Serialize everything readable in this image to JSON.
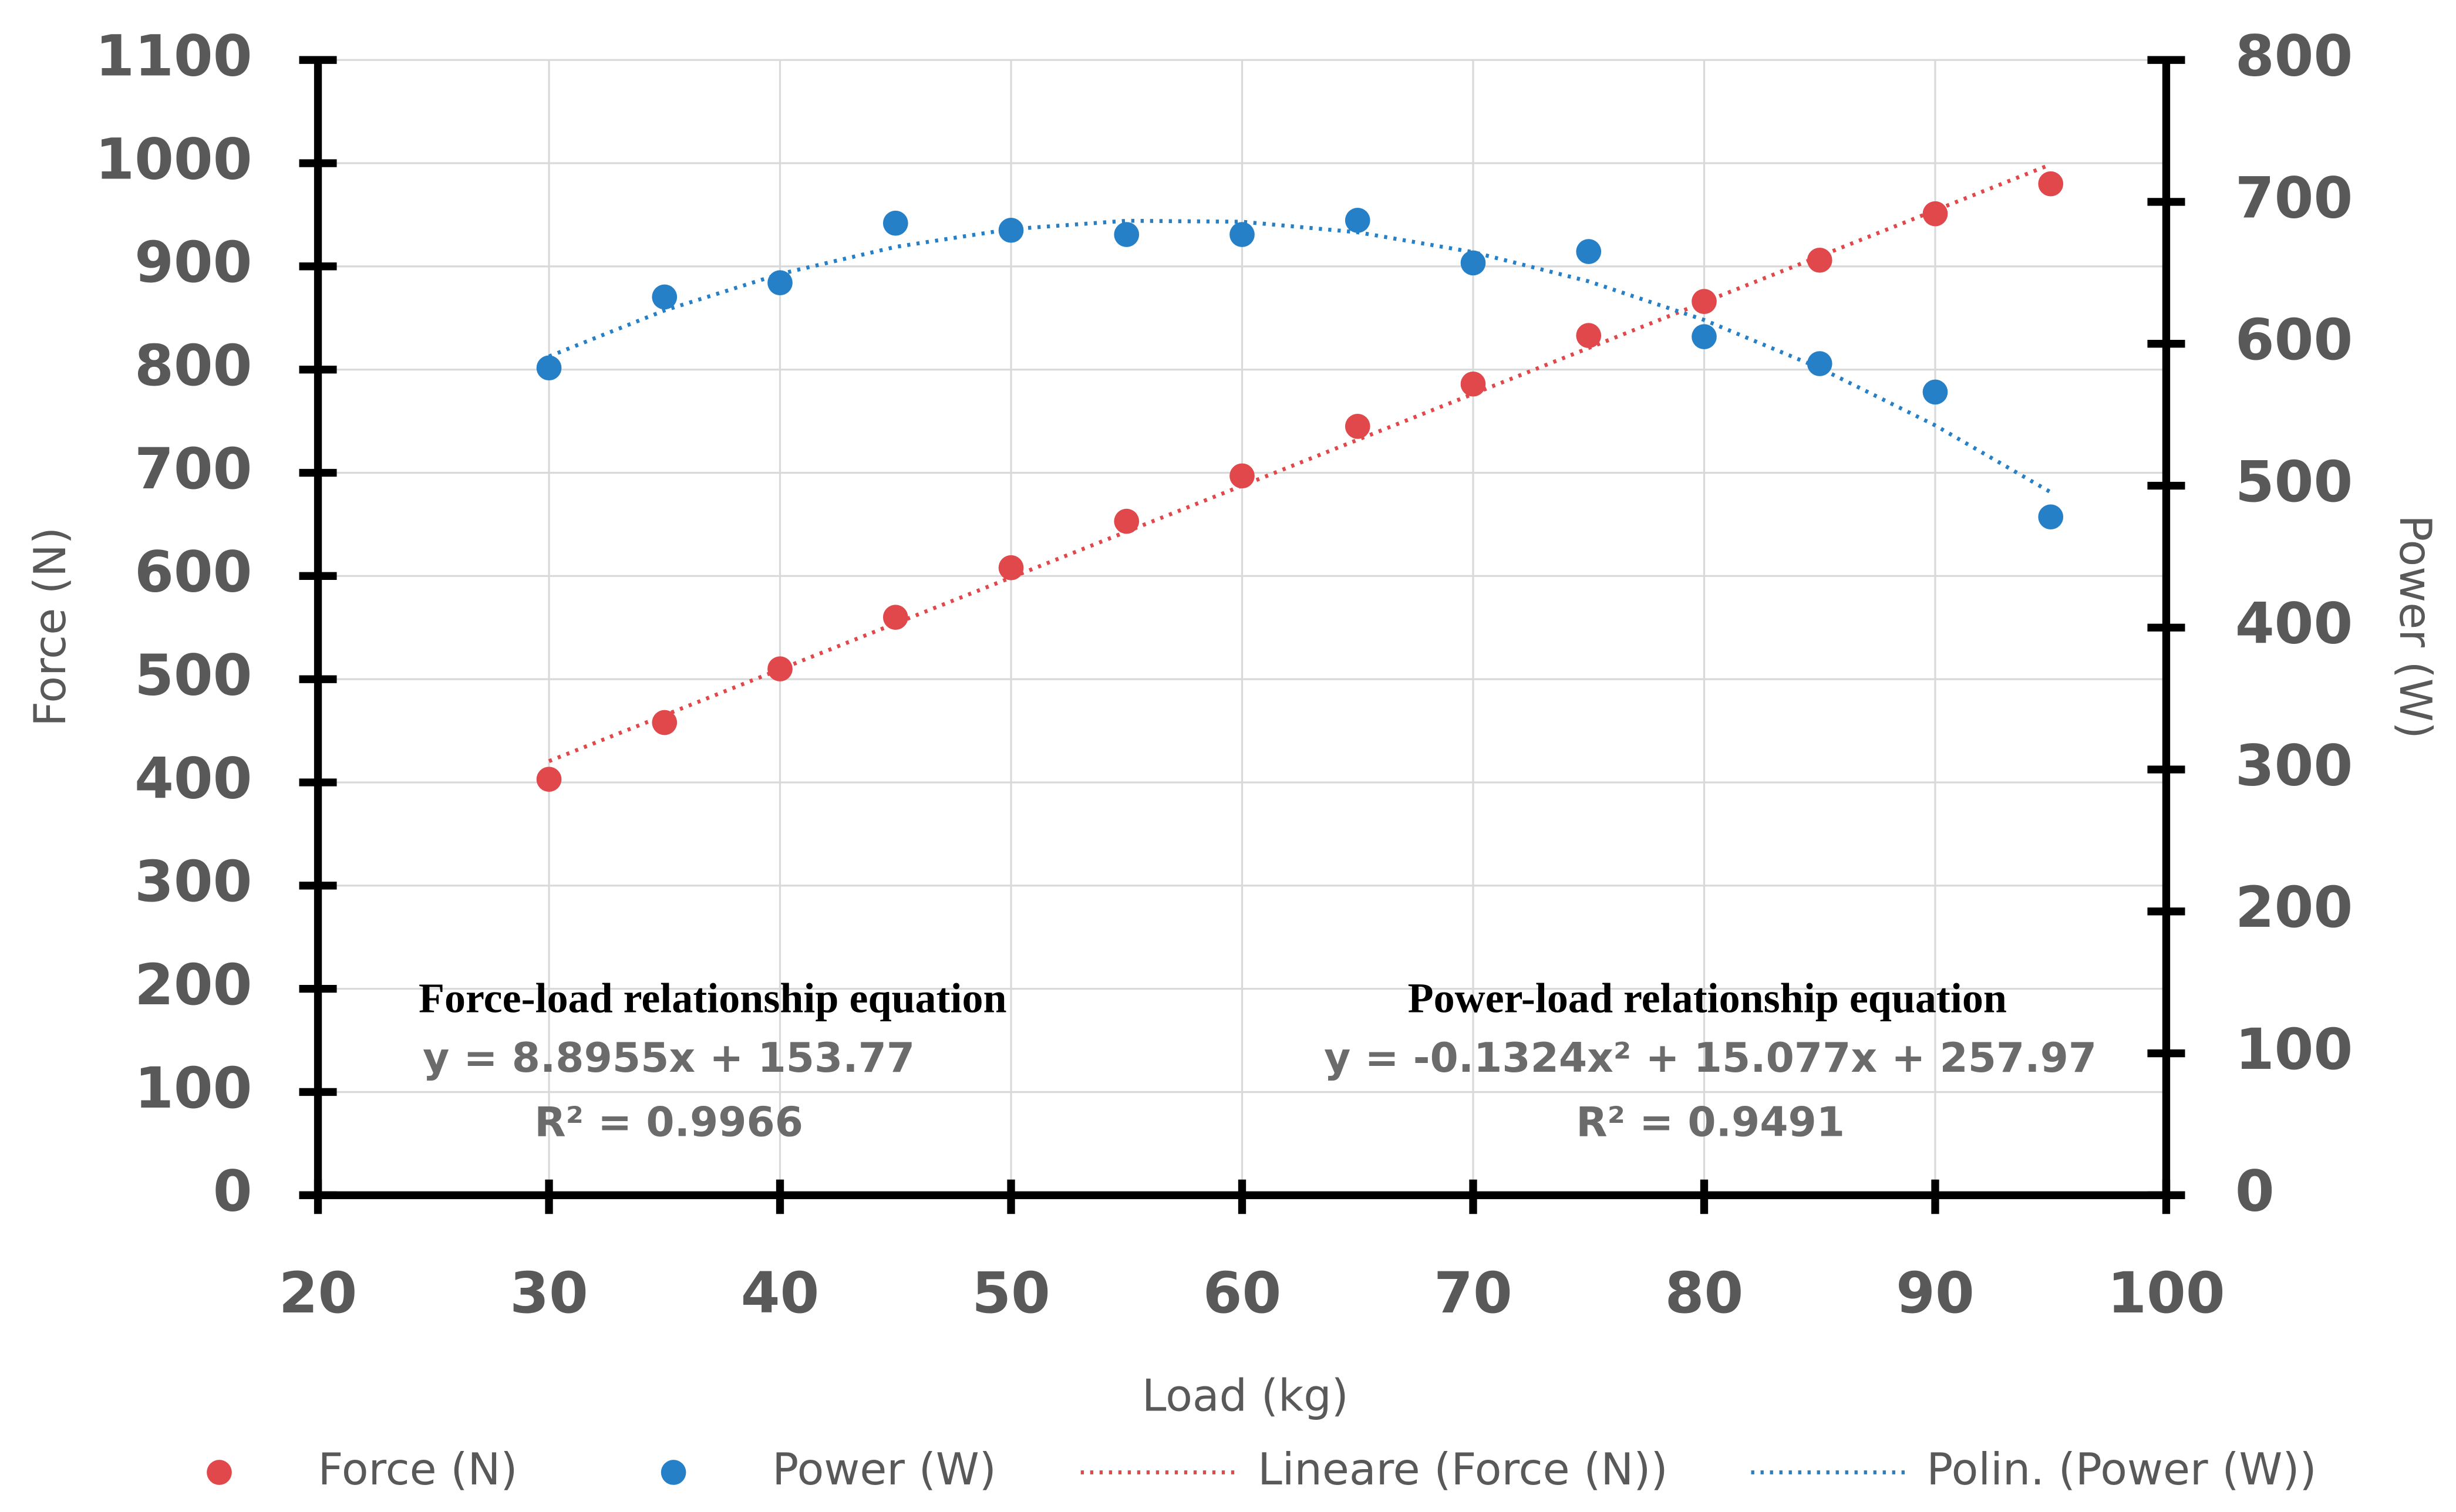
{
  "chart_data": {
    "type": "scatter",
    "x_label": "Load (kg)",
    "y_label": "Force (N)",
    "y2_label": "Power (W)",
    "x": [
      30,
      35,
      40,
      45,
      50,
      55,
      60,
      65,
      70,
      75,
      80,
      85,
      90,
      95
    ],
    "series": [
      {
        "name": "Force (N)",
        "color": "#e0484b",
        "style": "marker",
        "axis": "y",
        "values": [
          403,
          458,
          510,
          560,
          608,
          653,
          697,
          745,
          786,
          833,
          866,
          906,
          951,
          980
        ]
      },
      {
        "name": "Power (W)",
        "color": "#2680c8",
        "style": "marker",
        "axis": "y2",
        "values": [
          583,
          633,
          643,
          685,
          680,
          677,
          677,
          687,
          657,
          665,
          605,
          586,
          566,
          478
        ]
      },
      {
        "name": "Lineare (Force (N))",
        "color": "#e0484b",
        "style": "dotted",
        "axis": "y",
        "x": [
          30,
          95
        ],
        "values": [
          420.6,
          998.8
        ]
      },
      {
        "name": "Polin. (Power (W))",
        "color": "#2680c8",
        "style": "dotted",
        "axis": "y2",
        "values": [
          591.1,
          623.5,
          649.2,
          668.3,
          680.8,
          686.7,
          686.0,
          678.6,
          664.6,
          644.0,
          616.8,
          582.9,
          542.5,
          495.4
        ]
      }
    ],
    "xlim": [
      20,
      100
    ],
    "xticks": [
      20,
      30,
      40,
      50,
      60,
      70,
      80,
      90,
      100
    ],
    "ylim": [
      0,
      1100
    ],
    "yticks": [
      0,
      100,
      200,
      300,
      400,
      500,
      600,
      700,
      800,
      900,
      1000,
      1100
    ],
    "y2lim": [
      0,
      800
    ],
    "y2ticks": [
      0,
      100,
      200,
      300,
      400,
      500,
      600,
      700,
      800
    ],
    "grid": true,
    "legend": "bottom",
    "annotations": [
      {
        "title": "Force-load relationship equation",
        "equation": "y = 8.8955x + 153.77",
        "r2": "R² = 0.9966"
      },
      {
        "title": "Power-load relationship equation",
        "equation": "y = -0.1324x² + 15.077x + 257.97",
        "r2": "R² = 0.9491"
      }
    ]
  }
}
